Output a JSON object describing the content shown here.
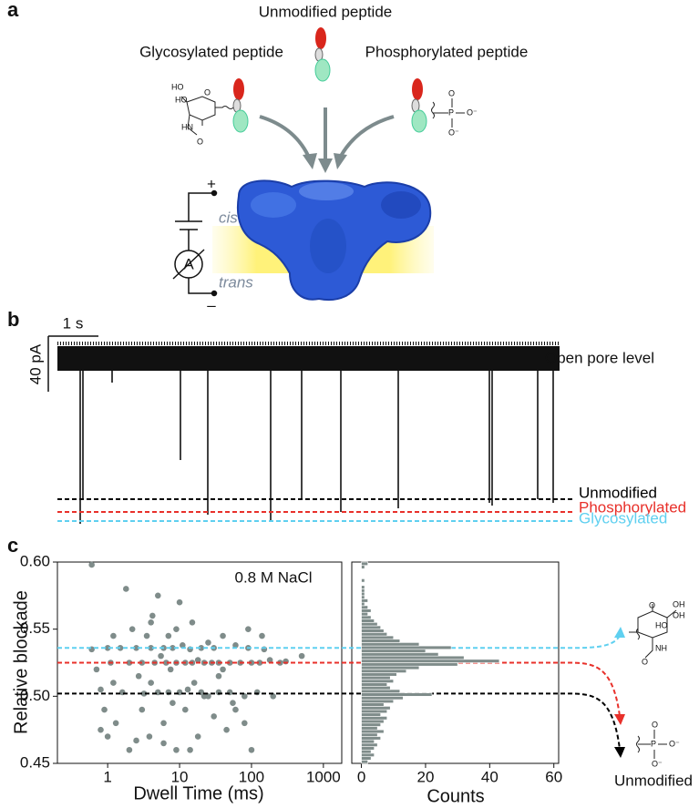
{
  "panel_a": {
    "label": "a",
    "unmodified": "Unmodified peptide",
    "glycosylated": "Glycosylated peptide",
    "phosphorylated": "Phosphorylated peptide",
    "glyco_atoms": [
      "HO",
      "HO",
      "O",
      "HN",
      "O"
    ],
    "phospho_atoms": [
      "P",
      "O",
      "O⁻",
      "O⁻"
    ],
    "cis": "cis",
    "trans": "trans",
    "plus": "+",
    "minus": "–",
    "ammeter": "A"
  },
  "panel_b": {
    "label": "b",
    "time_scale": "1 s",
    "current_scale": "40 pA",
    "open_pore": "Open pore level",
    "levels": [
      {
        "name": "Unmodified",
        "color": "#000000"
      },
      {
        "name": "Phosphorylated",
        "color": "#e8302a"
      },
      {
        "name": "Glycosylated",
        "color": "#5fd0f0"
      }
    ]
  },
  "panel_c": {
    "label": "c",
    "glyco_atoms": [
      "OH",
      "OH",
      "HO",
      "O",
      "NH",
      "O"
    ],
    "phospho_atoms": [
      "P",
      "O",
      "O⁻",
      "O⁻"
    ],
    "unmodified": "Unmodified"
  },
  "chart_data": [
    {
      "type": "scatter",
      "annotation": "0.8 M NaCl",
      "x_label": "Dwell Time (ms)",
      "y_label": "Relative blockade",
      "xscale": "log",
      "xlim": [
        0.2,
        1800
      ],
      "xticks": [
        1,
        10,
        100,
        1000
      ],
      "ylim": [
        0.45,
        0.6
      ],
      "yticks": [
        0.45,
        {
          "value": 0.5,
          "label": "0.50"
        },
        0.55,
        {
          "value": 0.6,
          "label": "0.60"
        }
      ],
      "color": "#7f8c8a",
      "x": [
        0.6,
        0.6,
        0.7,
        0.8,
        0.9,
        1,
        1,
        1.1,
        1.2,
        1.3,
        1.5,
        1.6,
        1.8,
        2,
        2,
        2.2,
        2.5,
        2.7,
        3,
        3,
        3.2,
        3.5,
        3.8,
        4,
        4,
        4.2,
        4.5,
        5,
        5,
        5.5,
        6,
        6,
        6.5,
        7,
        7,
        7.5,
        8,
        8,
        9,
        9,
        10,
        10,
        11,
        12,
        12,
        13,
        14,
        15,
        15,
        16,
        18,
        18,
        20,
        20,
        22,
        25,
        25,
        28,
        30,
        30,
        35,
        35,
        40,
        40,
        45,
        50,
        50,
        60,
        60,
        70,
        80,
        80,
        90,
        100,
        100,
        120,
        130,
        150,
        180,
        200,
        250,
        300,
        500,
        0.8,
        1.2,
        2.5,
        4,
        6,
        9,
        14,
        22,
        35,
        55,
        90,
        140
      ],
      "y": [
        0.598,
        0.535,
        0.52,
        0.505,
        0.49,
        0.536,
        0.47,
        0.525,
        0.51,
        0.48,
        0.536,
        0.503,
        0.58,
        0.525,
        0.46,
        0.55,
        0.536,
        0.515,
        0.525,
        0.49,
        0.502,
        0.545,
        0.47,
        0.536,
        0.51,
        0.56,
        0.525,
        0.503,
        0.575,
        0.53,
        0.536,
        0.48,
        0.525,
        0.503,
        0.545,
        0.52,
        0.536,
        0.495,
        0.525,
        0.46,
        0.57,
        0.503,
        0.538,
        0.525,
        0.49,
        0.505,
        0.535,
        0.525,
        0.555,
        0.51,
        0.527,
        0.47,
        0.536,
        0.503,
        0.525,
        0.54,
        0.5,
        0.525,
        0.536,
        0.485,
        0.525,
        0.503,
        0.545,
        0.52,
        0.475,
        0.525,
        0.503,
        0.538,
        0.49,
        0.525,
        0.5,
        0.48,
        0.536,
        0.525,
        0.46,
        0.503,
        0.525,
        0.535,
        0.527,
        0.5,
        0.525,
        0.526,
        0.53,
        0.475,
        0.545,
        0.467,
        0.555,
        0.465,
        0.55,
        0.46,
        0.5,
        0.515,
        0.495,
        0.55,
        0.545
      ],
      "reference_lines": [
        {
          "value": 0.536,
          "color": "#5fd0f0"
        },
        {
          "value": 0.525,
          "color": "#e8302a"
        },
        {
          "value": 0.502,
          "color": "#000000"
        }
      ]
    },
    {
      "type": "histogram",
      "orientation": "horizontal",
      "x_label": "Counts",
      "xlim": [
        -3,
        61.5
      ],
      "xticks": [
        0,
        20,
        40,
        60
      ],
      "ylim": [
        0.45,
        0.6
      ],
      "color": "#7f8c8a",
      "bins": [
        0.45,
        0.4525,
        0.455,
        0.4575,
        0.46,
        0.4625,
        0.465,
        0.4675,
        0.47,
        0.4725,
        0.475,
        0.4775,
        0.48,
        0.4825,
        0.485,
        0.4875,
        0.49,
        0.4925,
        0.495,
        0.4975,
        0.5,
        0.5025,
        0.505,
        0.5075,
        0.51,
        0.5125,
        0.515,
        0.5175,
        0.52,
        0.5225,
        0.525,
        0.5275,
        0.53,
        0.5325,
        0.535,
        0.5375,
        0.54,
        0.5425,
        0.545,
        0.5475,
        0.55,
        0.5525,
        0.555,
        0.5575,
        0.56,
        0.5625,
        0.565,
        0.5675,
        0.57,
        0.5725,
        0.575,
        0.5775,
        0.58,
        0.5825,
        0.585,
        0.5875,
        0.59,
        0.5925,
        0.595,
        0.5975,
        0.6
      ],
      "counts": [
        2,
        3,
        4,
        3,
        4,
        5,
        4,
        6,
        5,
        7,
        5,
        6,
        7,
        8,
        6,
        8,
        9,
        7,
        10,
        13,
        22,
        12,
        9,
        8,
        10,
        9,
        11,
        14,
        18,
        30,
        43,
        32,
        24,
        20,
        28,
        18,
        12,
        10,
        8,
        7,
        6,
        5,
        4,
        3,
        2,
        3,
        2,
        1,
        2,
        1,
        1,
        1,
        1,
        0,
        1,
        0,
        0,
        0,
        1,
        2
      ]
    }
  ]
}
